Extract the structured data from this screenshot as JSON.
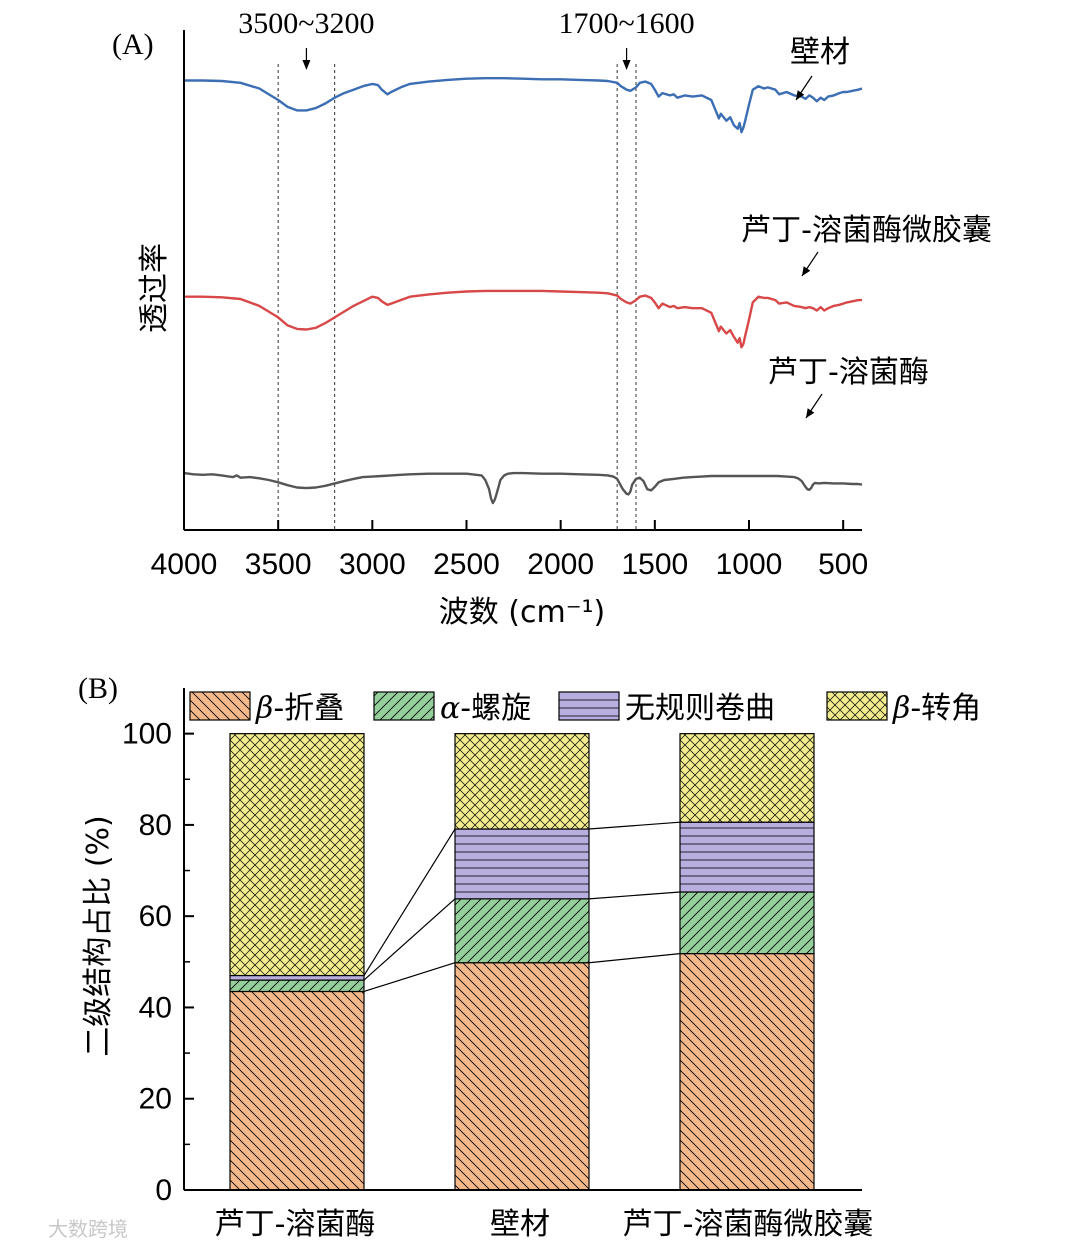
{
  "watermark": "大数跨境",
  "chart_data": [
    {
      "type": "line",
      "panel_label": "(A)",
      "xlabel": "波数 (cm⁻¹)",
      "ylabel": "透过率",
      "xlim": [
        4000,
        400
      ],
      "x_ticks": [
        "4000",
        "3500",
        "3000",
        "2500",
        "2000",
        "1500",
        "1000",
        "500"
      ],
      "x_tick_values": [
        4000,
        3500,
        3000,
        2500,
        2000,
        1500,
        1000,
        500
      ],
      "range_annotations": [
        {
          "text": "3500~3200",
          "from": 3500,
          "to": 3200,
          "arrow_at": 3350
        },
        {
          "text": "1700~1600",
          "from": 1700,
          "to": 1600,
          "arrow_at": 1650
        }
      ],
      "series": [
        {
          "name": "壁材",
          "color": "#3c6eb4",
          "label_anchor": 720,
          "x": [
            4000,
            3900,
            3800,
            3700,
            3600,
            3500,
            3450,
            3400,
            3350,
            3300,
            3250,
            3200,
            3150,
            3100,
            3050,
            3000,
            2970,
            2950,
            2920,
            2900,
            2850,
            2800,
            2700,
            2600,
            2500,
            2400,
            2300,
            2200,
            2100,
            2000,
            1900,
            1800,
            1750,
            1700,
            1680,
            1650,
            1630,
            1600,
            1580,
            1550,
            1520,
            1500,
            1480,
            1460,
            1420,
            1400,
            1380,
            1340,
            1300,
            1250,
            1200,
            1180,
            1160,
            1150,
            1120,
            1100,
            1080,
            1060,
            1050,
            1040,
            1030,
            1020,
            1000,
            980,
            950,
            920,
            900,
            860,
            840,
            800,
            760,
            720,
            700,
            680,
            660,
            640,
            620,
            600,
            580,
            550,
            520,
            500,
            480,
            450,
            420,
            400
          ],
          "y": [
            97,
            97,
            96.5,
            95,
            90,
            80,
            74,
            71,
            71,
            73,
            77,
            82,
            86,
            89,
            92,
            94,
            93,
            89,
            85,
            87,
            91,
            94,
            96,
            97.5,
            98.5,
            99,
            99,
            98.5,
            98,
            98,
            97.5,
            97,
            96.5,
            95,
            92,
            89,
            88,
            91,
            95,
            96,
            94,
            89,
            83,
            86,
            84,
            85,
            82,
            84,
            83,
            84,
            80,
            72,
            64,
            68,
            62,
            65,
            58,
            55,
            60,
            52,
            56,
            62,
            76,
            89,
            92,
            90,
            91,
            89,
            85,
            87,
            84,
            83,
            81,
            84,
            82,
            79,
            82,
            80,
            83,
            84,
            86,
            87,
            87,
            88,
            89,
            90
          ]
        },
        {
          "name": "芦丁-溶菌酶微胶囊",
          "color": "#d84848",
          "label_anchor": 720,
          "x": [
            4000,
            3900,
            3800,
            3700,
            3600,
            3500,
            3450,
            3400,
            3350,
            3300,
            3250,
            3200,
            3150,
            3100,
            3050,
            3000,
            2970,
            2950,
            2920,
            2900,
            2850,
            2800,
            2700,
            2600,
            2500,
            2400,
            2300,
            2200,
            2100,
            2000,
            1900,
            1800,
            1750,
            1700,
            1680,
            1650,
            1630,
            1600,
            1580,
            1550,
            1520,
            1500,
            1480,
            1460,
            1420,
            1400,
            1380,
            1340,
            1300,
            1250,
            1200,
            1180,
            1160,
            1150,
            1120,
            1100,
            1080,
            1060,
            1050,
            1040,
            1030,
            1020,
            1000,
            980,
            950,
            920,
            900,
            860,
            840,
            800,
            760,
            720,
            700,
            680,
            660,
            640,
            620,
            600,
            580,
            550,
            520,
            500,
            480,
            450,
            420,
            400
          ],
          "y": [
            62,
            62,
            61.5,
            60,
            54,
            44,
            37,
            34,
            33.5,
            35,
            39,
            44,
            49,
            54,
            58,
            62,
            61,
            58,
            55,
            56,
            59,
            62,
            64,
            65.5,
            66.5,
            67,
            67,
            67,
            67,
            66.5,
            66,
            65.5,
            65,
            63,
            60,
            57,
            56,
            59,
            62,
            63,
            61,
            57,
            52,
            56,
            53,
            54,
            52,
            53,
            52,
            52,
            48,
            40,
            32,
            36,
            30,
            33,
            27,
            22,
            26,
            18,
            21,
            28,
            42,
            57,
            62,
            61,
            61,
            59,
            56,
            57,
            54,
            53,
            52,
            53,
            52,
            50,
            53,
            50,
            52,
            54,
            55,
            56,
            57,
            58,
            59,
            59
          ]
        },
        {
          "name": "芦丁-溶菌酶",
          "color": "#555555",
          "label_anchor": 700,
          "x": [
            4000,
            3950,
            3900,
            3850,
            3800,
            3760,
            3740,
            3720,
            3700,
            3650,
            3600,
            3550,
            3500,
            3450,
            3400,
            3350,
            3300,
            3250,
            3200,
            3150,
            3100,
            3050,
            3000,
            2950,
            2900,
            2850,
            2800,
            2700,
            2600,
            2500,
            2420,
            2400,
            2380,
            2370,
            2360,
            2350,
            2340,
            2330,
            2320,
            2300,
            2280,
            2250,
            2200,
            2100,
            2000,
            1900,
            1800,
            1750,
            1720,
            1700,
            1690,
            1670,
            1650,
            1640,
            1630,
            1620,
            1600,
            1580,
            1560,
            1540,
            1520,
            1500,
            1480,
            1450,
            1400,
            1350,
            1300,
            1250,
            1200,
            1150,
            1100,
            1050,
            1000,
            950,
            900,
            850,
            800,
            760,
            740,
            720,
            700,
            690,
            680,
            670,
            660,
            650,
            630,
            600,
            550,
            500,
            450,
            420,
            400
          ],
          "y": [
            26,
            25,
            24.5,
            25,
            24,
            23,
            22.5,
            24,
            22,
            22.5,
            21.5,
            20,
            18,
            15.5,
            13.5,
            13,
            13.5,
            15,
            17,
            19,
            21,
            22.5,
            23,
            23.5,
            24,
            24.5,
            25,
            25.5,
            25.5,
            25.5,
            24,
            20,
            12,
            4,
            0,
            3,
            8,
            14,
            20,
            24,
            25.5,
            26,
            26,
            25.5,
            25.5,
            25,
            24.5,
            24,
            23,
            21,
            18,
            12,
            8,
            7.5,
            10,
            16,
            21,
            22,
            19,
            12,
            11,
            14,
            18,
            20,
            21,
            22,
            22.5,
            23,
            23.5,
            23.5,
            23.5,
            23.5,
            23.5,
            23.5,
            23.5,
            23.5,
            23,
            22.5,
            21.5,
            19,
            14,
            12,
            11.5,
            13,
            16,
            17.5,
            17,
            17.5,
            17,
            17,
            16.5,
            16.5,
            16
          ]
        }
      ]
    },
    {
      "type": "bar",
      "stacked": true,
      "panel_label": "(B)",
      "ylabel": "二级结构占比 (%)",
      "ylim": [
        0,
        110
      ],
      "y_ticks": [
        "0",
        "20",
        "40",
        "60",
        "80",
        "100"
      ],
      "y_tick_values": [
        0,
        20,
        40,
        60,
        80,
        100
      ],
      "categories": [
        "芦丁-溶菌酶",
        "壁材",
        "芦丁-溶菌酶微胶囊"
      ],
      "series": [
        {
          "name": "β-折叠",
          "symbol": "β",
          "suffix": "-折叠",
          "italic_symbol": true,
          "color": "#f4b98b",
          "pattern": "back-diag",
          "values": [
            43.5,
            49.8,
            51.8
          ]
        },
        {
          "name": "α-螺旋",
          "symbol": "α",
          "suffix": "-螺旋",
          "italic_symbol": true,
          "color": "#94cf9c",
          "pattern": "fwd-diag",
          "values": [
            2.5,
            14.0,
            13.5
          ]
        },
        {
          "name": "无规则卷曲",
          "symbol": "",
          "suffix": "无规则卷曲",
          "italic_symbol": false,
          "color": "#b9aee0",
          "pattern": "horiz",
          "values": [
            1.0,
            15.3,
            15.3
          ]
        },
        {
          "name": "β-转角",
          "symbol": "β",
          "suffix": "-转角",
          "italic_symbol": true,
          "color": "#f2ec8e",
          "pattern": "cross",
          "values": [
            53.0,
            20.9,
            19.4
          ]
        }
      ]
    }
  ]
}
